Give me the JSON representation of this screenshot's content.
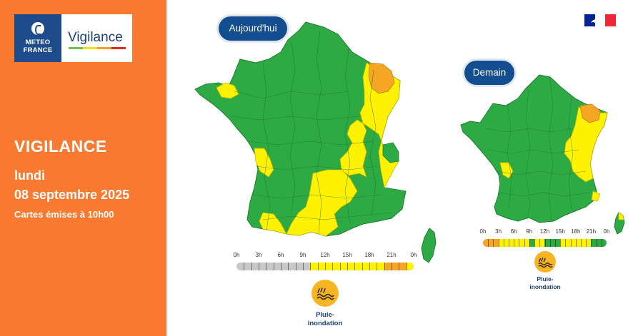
{
  "brand": {
    "logo_line1": "METEO",
    "logo_line2": "FRANCE",
    "app_name": "Vigilance",
    "bar_colors": [
      "#6fbf4b",
      "#f5e400",
      "#f7a122",
      "#e02a1b"
    ],
    "panel_color": "#f97a30",
    "brand_blue": "#1e4b8c"
  },
  "info": {
    "heading": "VIGILANCE",
    "day": "lundi",
    "date": "08 septembre 2025",
    "issued": "Cartes émises à 10h00"
  },
  "legend_colors": {
    "green": "#2eaa44",
    "yellow": "#fff200",
    "orange": "#f5a623",
    "grey": "#c8c8c8"
  },
  "today": {
    "label": "Aujourd'hui",
    "timeline": {
      "hours": [
        "0h",
        "3h",
        "6h",
        "9h",
        "12h",
        "15h",
        "18h",
        "21h",
        "0h"
      ],
      "segments": [
        {
          "from": 0,
          "to": 10,
          "color": "grey"
        },
        {
          "from": 10,
          "to": 20,
          "color": "yellow"
        },
        {
          "from": 20,
          "to": 23,
          "color": "orange"
        },
        {
          "from": 23,
          "to": 24,
          "color": "yellow"
        }
      ]
    },
    "hazard": {
      "icon": "rain-flood-icon",
      "label_line1": "Pluie-",
      "label_line2": "inondation"
    }
  },
  "tomorrow": {
    "label": "Demain",
    "timeline": {
      "hours": [
        "0h",
        "3h",
        "6h",
        "9h",
        "12h",
        "15h",
        "18h",
        "21h",
        "0h"
      ],
      "segments": [
        {
          "from": 0,
          "to": 3,
          "color": "orange"
        },
        {
          "from": 3,
          "to": 9,
          "color": "yellow"
        },
        {
          "from": 9,
          "to": 10,
          "color": "green"
        },
        {
          "from": 10,
          "to": 12,
          "color": "yellow"
        },
        {
          "from": 12,
          "to": 15,
          "color": "green"
        },
        {
          "from": 15,
          "to": 21,
          "color": "yellow"
        },
        {
          "from": 21,
          "to": 24,
          "color": "green"
        }
      ]
    },
    "hazard": {
      "icon": "rain-flood-icon",
      "label_line1": "Pluie-",
      "label_line2": "inondation"
    }
  }
}
